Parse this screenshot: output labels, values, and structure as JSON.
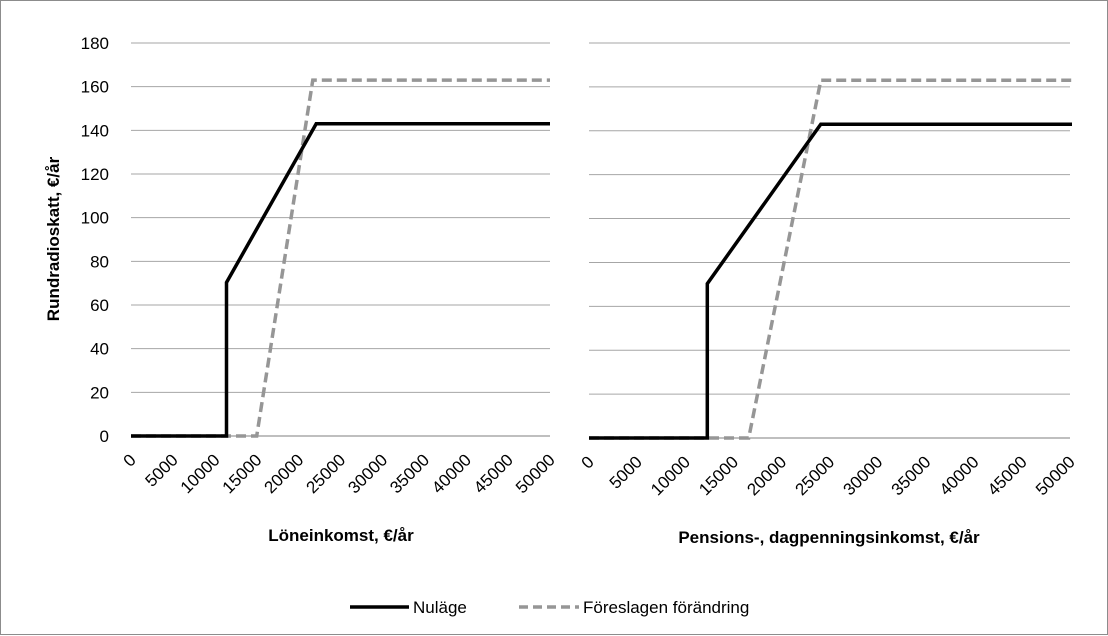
{
  "chart_data": [
    {
      "type": "line",
      "xlabel": "Löneinkomst, €/år",
      "ylabel": "Rundradioskatt, €/år",
      "xticks": [
        0,
        5000,
        10000,
        15000,
        20000,
        25000,
        30000,
        35000,
        40000,
        45000,
        50000
      ],
      "yticks": [
        0,
        20,
        40,
        60,
        80,
        100,
        120,
        140,
        160,
        180
      ],
      "xlim": [
        0,
        50000
      ],
      "ylim": [
        0,
        180
      ],
      "grid": "horizontal",
      "series": [
        {
          "name": "Nuläge",
          "style": "solid",
          "color": "#000000",
          "points": [
            [
              0,
              0
            ],
            [
              11400,
              0
            ],
            [
              11400,
              70.3
            ],
            [
              22100,
              143
            ],
            [
              50000,
              143
            ]
          ]
        },
        {
          "name": "Föreslagen förändring",
          "style": "dashed",
          "color": "#969696",
          "points": [
            [
              0,
              0
            ],
            [
              15000,
              0
            ],
            [
              21700,
              163
            ],
            [
              50000,
              163
            ]
          ]
        }
      ]
    },
    {
      "type": "line",
      "xlabel": "Pensions-, dagpenningsinkomst, €/år",
      "ylabel": "",
      "xticks": [
        0,
        5000,
        10000,
        15000,
        20000,
        25000,
        30000,
        35000,
        40000,
        45000,
        50000
      ],
      "yticks": [
        0,
        20,
        40,
        60,
        80,
        100,
        120,
        140,
        160,
        180
      ],
      "xlim": [
        0,
        50000
      ],
      "ylim": [
        0,
        180
      ],
      "grid": "horizontal",
      "series": [
        {
          "name": "Nuläge",
          "style": "solid",
          "color": "#000000",
          "points": [
            [
              0,
              0
            ],
            [
              12300,
              0
            ],
            [
              12300,
              70.3
            ],
            [
              24100,
              143
            ],
            [
              55000,
              143
            ]
          ]
        },
        {
          "name": "Föreslagen förändring",
          "style": "dashed",
          "color": "#969696",
          "points": [
            [
              0,
              0
            ],
            [
              16600,
              0
            ],
            [
              24100,
              163
            ],
            [
              55000,
              163
            ]
          ]
        }
      ]
    }
  ],
  "legend": {
    "placement": "bottom-center",
    "items": [
      {
        "label": "Nuläge",
        "style": "solid",
        "color": "#000000"
      },
      {
        "label": "Föreslagen förändring",
        "style": "dashed",
        "color": "#969696"
      }
    ]
  }
}
